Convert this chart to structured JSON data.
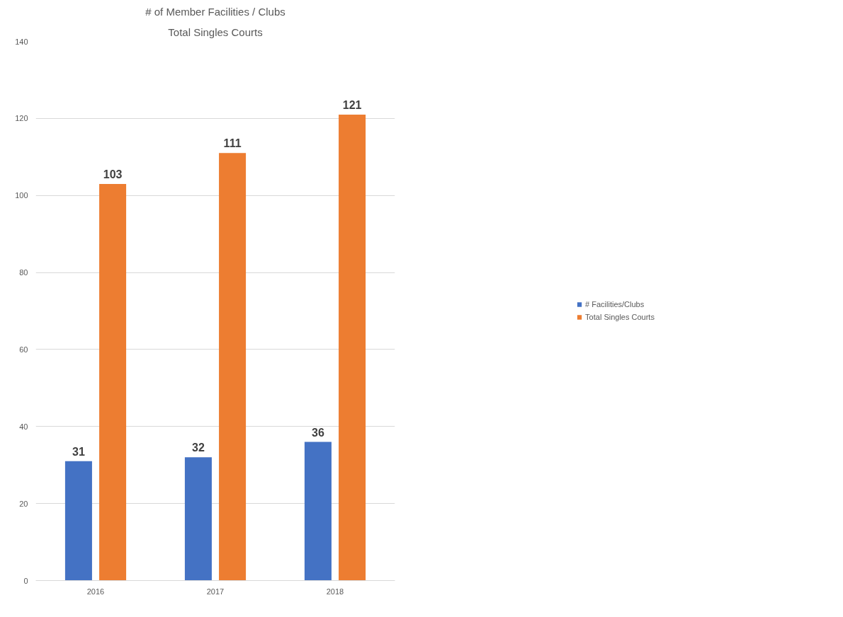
{
  "chart_data": {
    "type": "bar",
    "title": "# of Member Facilities / Clubs",
    "subtitle": "Total Singles Courts",
    "categories": [
      "2016",
      "2017",
      "2018"
    ],
    "series": [
      {
        "name": "# Facilities/Clubs",
        "color": "#4472c4",
        "values": [
          31,
          32,
          36
        ]
      },
      {
        "name": "Total Singles Courts",
        "color": "#ed7d31",
        "values": [
          103,
          111,
          121
        ]
      }
    ],
    "ylim": [
      0,
      140
    ],
    "yticks": [
      0,
      20,
      40,
      60,
      80,
      100,
      120,
      140
    ],
    "grid": "y",
    "legend": "right",
    "data_labels": true
  }
}
